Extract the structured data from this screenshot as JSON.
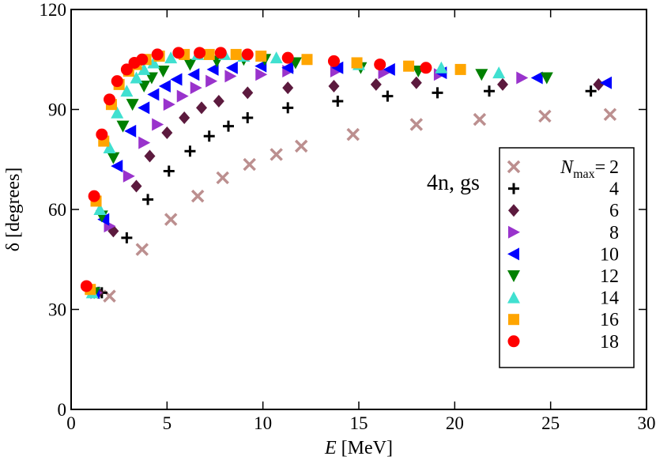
{
  "chart_data": {
    "type": "scatter",
    "annotation": "4n, gs",
    "x_label": {
      "symbol": "E",
      "unit": "[MeV]"
    },
    "y_label": "δ [degrees]",
    "xlim": [
      0,
      30
    ],
    "xticks": [
      0,
      5,
      10,
      15,
      20,
      25,
      30
    ],
    "ylim": [
      0,
      120
    ],
    "yticks": [
      0,
      30,
      60,
      90,
      120
    ],
    "legend_title": {
      "symbol": "N",
      "subscript": "max",
      "relation": "="
    },
    "legend": "lower right",
    "series": [
      {
        "name": "2",
        "color": "#bc8f8f",
        "marker": "x",
        "x": [
          2.0,
          3.7,
          5.2,
          6.6,
          7.9,
          9.3,
          10.7,
          12.0,
          14.7,
          18.0,
          21.3,
          24.7,
          28.1
        ],
        "values": [
          34,
          48,
          57,
          64,
          69.5,
          73.5,
          76.5,
          79,
          82.5,
          85.5,
          87,
          88,
          88.5
        ]
      },
      {
        "name": "4",
        "color": "#000000",
        "marker": "plus",
        "x": [
          1.6,
          2.9,
          4.0,
          5.1,
          6.2,
          7.2,
          8.2,
          9.2,
          11.3,
          13.9,
          16.5,
          19.1,
          21.8,
          27.1
        ],
        "values": [
          35,
          51.5,
          63,
          71.5,
          77.5,
          82,
          85,
          87.5,
          90.5,
          92.5,
          94,
          95,
          95.5,
          95.5
        ]
      },
      {
        "name": "6",
        "color": "#5c1a3e",
        "marker": "diamond",
        "x": [
          1.4,
          2.2,
          3.4,
          4.1,
          5.0,
          5.9,
          6.8,
          7.7,
          9.2,
          11.3,
          13.7,
          15.9,
          18.0,
          22.5,
          27.5
        ],
        "values": [
          35,
          53.5,
          67,
          76,
          83,
          87.5,
          90.5,
          92.5,
          95,
          96.5,
          97,
          97.5,
          98,
          97.5,
          97.5
        ]
      },
      {
        "name": "8",
        "color": "#9933cc",
        "marker": "tri-right",
        "x": [
          1.3,
          2.0,
          3.0,
          3.8,
          4.5,
          5.1,
          5.8,
          6.5,
          7.3,
          8.3,
          9.9,
          11.3,
          13.8,
          16.3,
          19.2,
          23.5
        ],
        "values": [
          35,
          55,
          70,
          80,
          85.5,
          91.5,
          94,
          96.5,
          98.5,
          100,
          100.5,
          101.5,
          101.5,
          101,
          100.5,
          99.5
        ]
      },
      {
        "name": "10",
        "color": "#0000ff",
        "marker": "tri-left",
        "x": [
          1.2,
          1.7,
          2.4,
          3.1,
          3.8,
          4.3,
          4.9,
          5.5,
          6.4,
          7.4,
          8.4,
          9.9,
          11.3,
          13.9,
          16.6,
          19.3,
          24.3,
          27.9
        ],
        "values": [
          35,
          57,
          73,
          83.5,
          90.5,
          94.5,
          97,
          99,
          100.5,
          102,
          102.5,
          103,
          102.5,
          102.5,
          102,
          101,
          99.5,
          98
        ]
      },
      {
        "name": "12",
        "color": "#008000",
        "marker": "tri-down",
        "x": [
          1.2,
          1.6,
          2.2,
          2.7,
          3.2,
          3.8,
          4.2,
          4.8,
          6.2,
          7.6,
          9.0,
          10.1,
          11.7,
          15.1,
          18.1,
          21.4,
          24.8
        ],
        "values": [
          35,
          58,
          75.5,
          85,
          91.5,
          97,
          99.5,
          101.5,
          103.5,
          104.5,
          105,
          105,
          104,
          102.5,
          101.5,
          100.5,
          99.5
        ]
      },
      {
        "name": "14",
        "color": "#40e0d0",
        "marker": "tri-up",
        "x": [
          1.1,
          1.5,
          2.0,
          2.4,
          2.9,
          3.4,
          3.8,
          4.3,
          5.2,
          6.6,
          8.0,
          9.0,
          10.7,
          15.0,
          19.3,
          22.3
        ],
        "values": [
          35,
          60,
          78.5,
          89,
          95.5,
          99.5,
          102,
          104,
          105.5,
          106.5,
          106.5,
          106,
          105.5,
          103.5,
          102.5,
          101
        ]
      },
      {
        "name": "16",
        "color": "#ffa500",
        "marker": "square",
        "x": [
          1.0,
          1.3,
          1.7,
          2.1,
          2.5,
          3.0,
          3.4,
          3.9,
          4.6,
          5.9,
          7.2,
          8.6,
          9.9,
          12.3,
          14.9,
          17.6,
          20.3
        ],
        "values": [
          36,
          62.5,
          80.5,
          91.5,
          97.5,
          101.5,
          103.5,
          105,
          106,
          106.5,
          106.5,
          106.5,
          106,
          105,
          104,
          103,
          102
        ]
      },
      {
        "name": "18",
        "color": "#ff0000",
        "marker": "circle",
        "x": [
          0.8,
          1.2,
          1.6,
          2.0,
          2.4,
          2.9,
          3.3,
          3.7,
          4.5,
          5.6,
          6.7,
          7.8,
          9.2,
          11.3,
          13.7,
          16.1,
          18.5
        ],
        "values": [
          37,
          64,
          82.5,
          93,
          98.5,
          102,
          104,
          105,
          106.5,
          107,
          107,
          107,
          106.5,
          105.5,
          104.5,
          103.5,
          102.5
        ]
      }
    ]
  }
}
